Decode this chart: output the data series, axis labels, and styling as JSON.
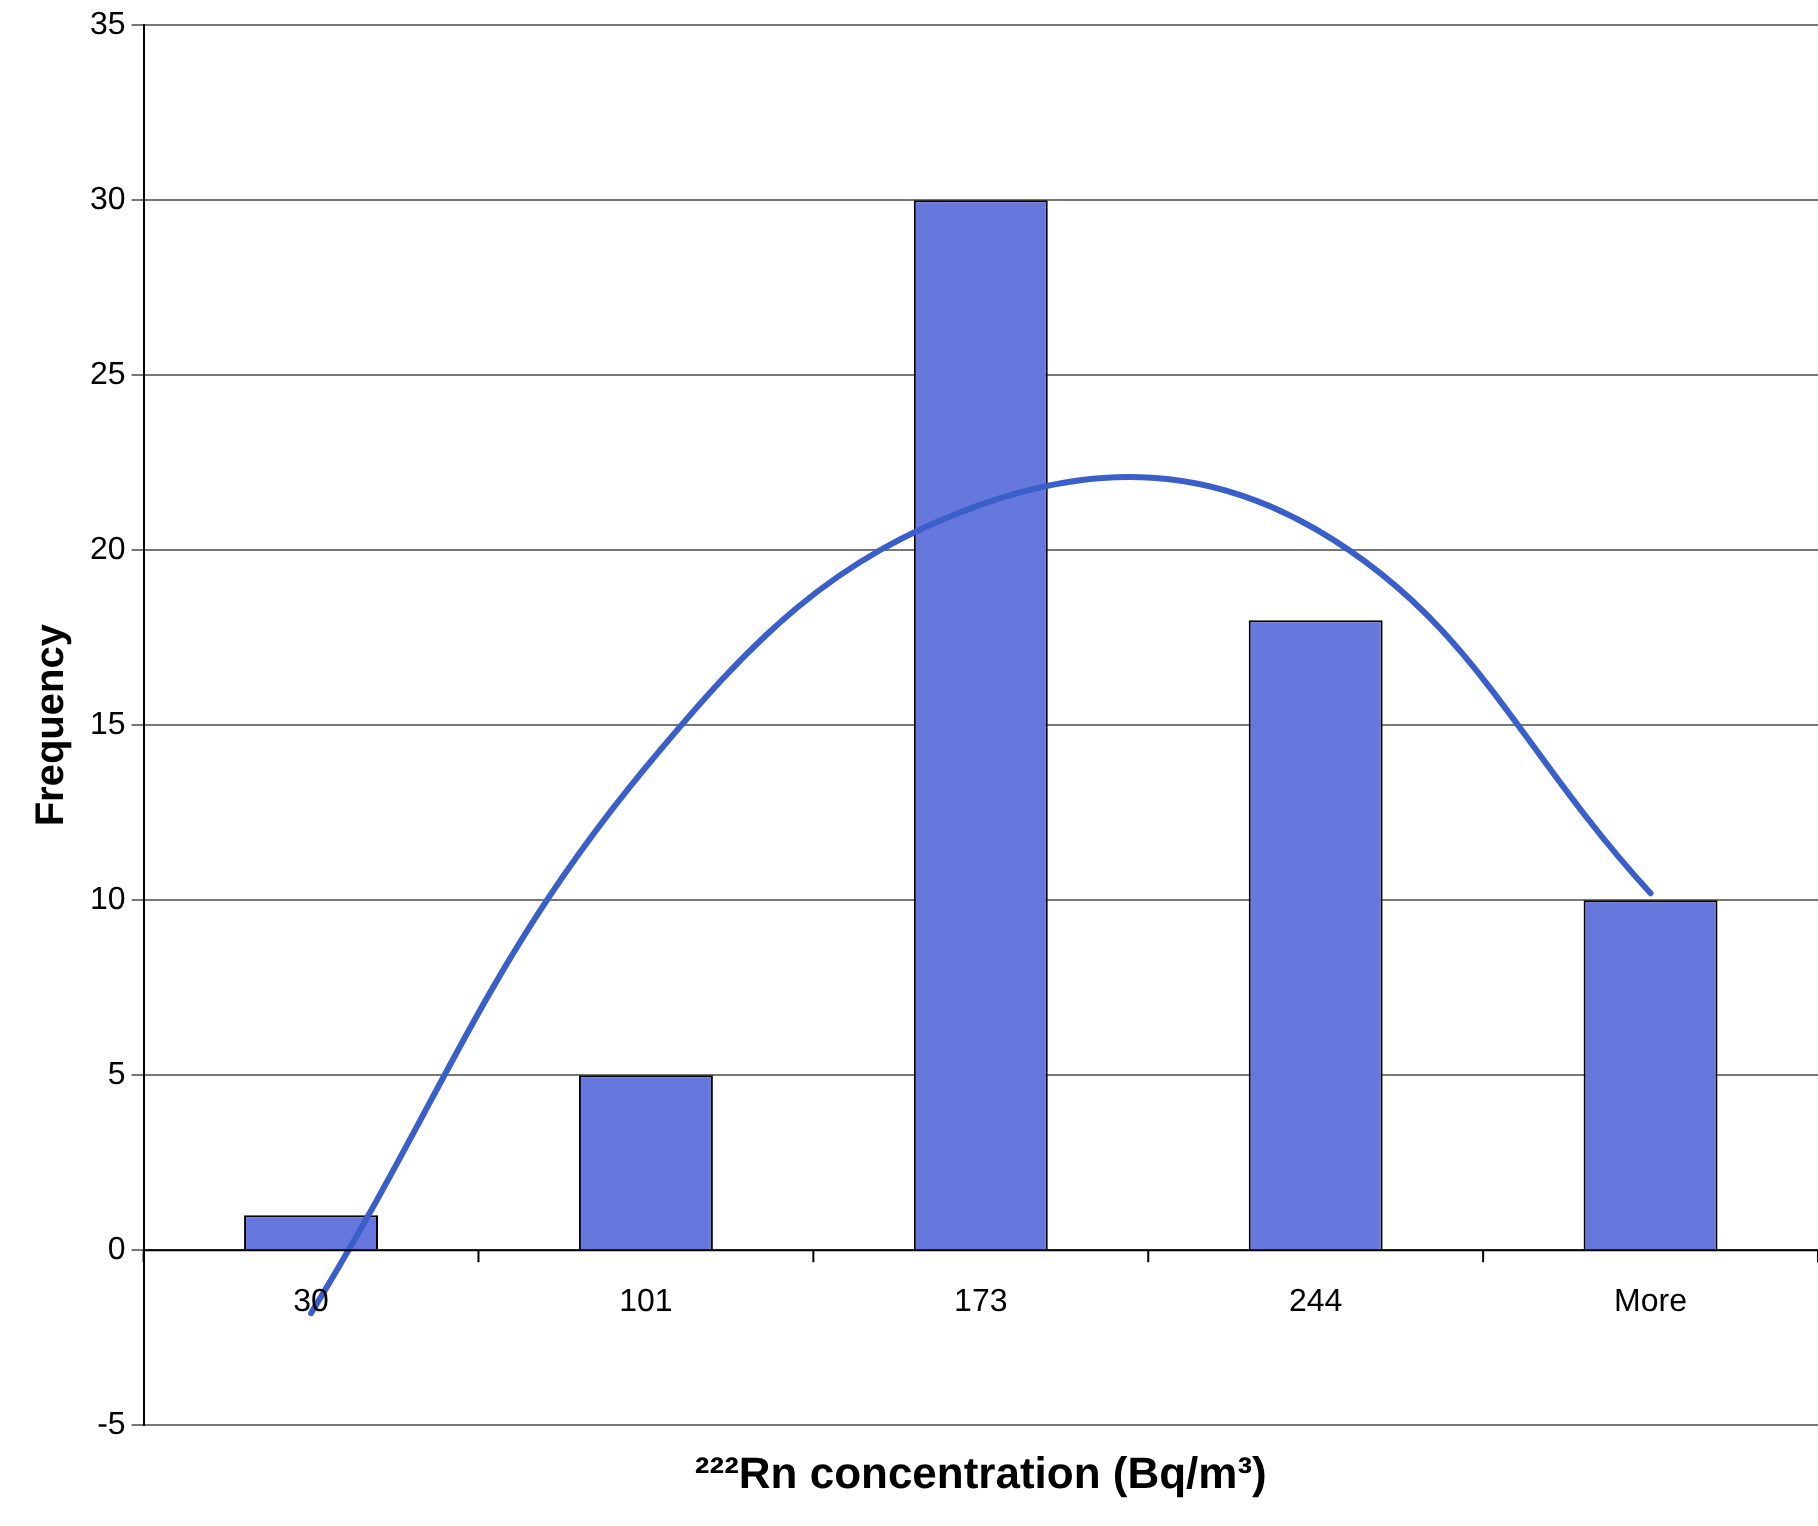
{
  "chart_data": {
    "type": "bar",
    "xlabel": "²²²Rn concentration (Bq/m³)",
    "ylabel": "Frequency",
    "categories": [
      "30",
      "101",
      "173",
      "244",
      "More"
    ],
    "series": [
      {
        "color": "#6677dd",
        "values": [
          1,
          5,
          30,
          18,
          10
        ]
      },
      {
        "type": "line",
        "color": "#3a5fc8",
        "values": [
          -1.8,
          13.8,
          21.3,
          20.6,
          10.2
        ]
      }
    ],
    "ylim": [
      -5,
      35
    ],
    "yticks": [
      -5,
      0,
      5,
      10,
      15,
      20,
      25,
      30,
      35
    ],
    "grid": "y",
    "legend": false,
    "marker": "none"
  }
}
